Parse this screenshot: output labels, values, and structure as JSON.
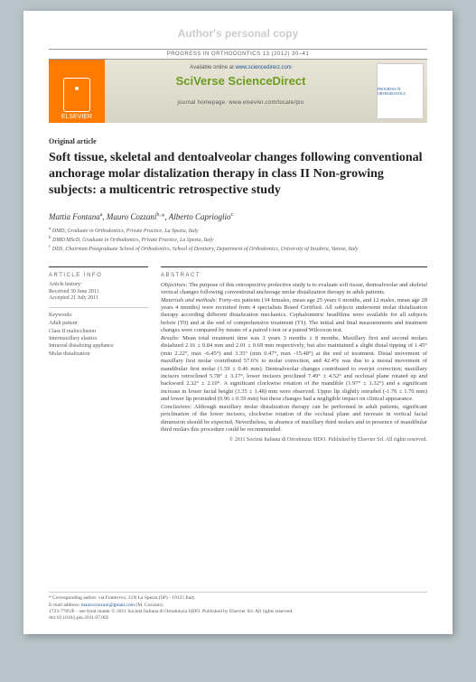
{
  "watermark": "Author's personal copy",
  "journal_line": "PROGRESS IN ORTHODONTICS 13 (2012) 30–41",
  "banner": {
    "publisher": "ELSEVIER",
    "available": "Available online at",
    "available_url": "www.sciencedirect.com",
    "sciverse": "SciVerse ScienceDirect",
    "homepage_label": "journal homepage:",
    "homepage_url": "www.elsevier.com/locate/pio",
    "cover_text": "PROGRESS IN ORTHODONTICS"
  },
  "article_type": "Original article",
  "title": "Soft tissue, skeletal and dentoalveolar changes following conventional anchorage molar distalization therapy in class II Non-growing subjects: a multicentric retrospective study",
  "authors_html": "Mattia Fontana",
  "author1": "Mattia Fontana",
  "author1_sup": "a",
  "author2": "Mauro Cozzani",
  "author2_sup": "b,",
  "author3": "Alberto Caprioglio",
  "author3_sup": "c",
  "affiliations": {
    "a": "DMD, Graduate in Orthodontics, Private Practice, La Spezia, Italy",
    "b": "DMD MScD, Graduate in Orthodontics, Private Practice, La Spezia, Italy",
    "c": "DDS, Chairman Postgraduate School of Orthodontics, School of Dentistry, Department of Orthodontics, University of Insubria, Varese, Italy"
  },
  "info_head": "ARTICLE INFO",
  "abs_head": "ABSTRACT",
  "history_label": "Article history:",
  "received": "Received 30 June 2011",
  "accepted": "Accepted 21 July 2011",
  "keywords_label": "Keywords:",
  "keywords": [
    "Adult patient",
    "Class II malocclusion",
    "Intermaxillary elastics",
    "Intraoral distalizing appliance",
    "Molar distalization"
  ],
  "abstract": {
    "objectives_label": "Objectives:",
    "objectives": "The purpose of this retrospective prolective study is to evaluate soft tissue, dentoalveolar and skeletal vertical changes following conventional anchorage molar distalization therapy in adult patients.",
    "methods_label": "Materials and methods:",
    "methods": "Forty-six patients (34 females, mean age 25 years 6 months, and 12 males, mean age 28 years 4 months) were recruited from 4 specialists Board Certified. All subjects underwent molar distalization therapy according different distalization mechanics. Cephalometric headfilms were available for all subjects before (T0) and at the end of comprehensive treatment (T1). The initial and final measurements and treatment changes were compared by means of a paired t-test or a paired Wilcoxon test.",
    "results_label": "Results:",
    "results": "Mean total treatment time was 3 years 3 months ± 8 months. Maxillary first and second molars distalized 2.16 ± 0.84 mm and 2.01 ± 0.69 mm respectively, but also maintained a slight distal tipping of 1.45° (min 2.22°, max -6.45°) and 3.35° (min 0.47°, max -15.48°) at the end of treatment. Distal movement of maxillary first molar contributed 57.6% to molar correction, and 42.4% was due to a mesial movement of mandibular first molar (1.59 ± 0.46 mm). Dentoalveolar changes contributed to overjet correction; maxillary incisors retroclined 5.78° ± 3.17°, lower incisors proclined 7.49° ± 4.52° and occlusal plane rotated up and backward 2.32° ± 2.10°. A significant clockwise rotation of the mandible (1.97° ± 1.32°) and a significant increase in lower facial height (3.35 ± 1.48) mm were observed. Upper lip slightly retruded (-1.76 ± 1.70 mm) and lower lip protruded (0.96 ± 0.59 mm) but these changes had a negligible impact on clinical appearance.",
    "conclusions_label": "Conclusions:",
    "conclusions": "Although maxillary molar distalization therapy can be performed in adult patients, significant proclination of the lower incisors, clockwise rotation of the occlusal plane and increase in vertical facial dimension should be expected. Nevertheless, in absence of maxillary third molars and in presence of mandibular third molars this procedure could be recommended."
  },
  "copyright": "© 2011 Società Italiana di Ortodonzia SIDO. Published by Elsevier Srl. All rights reserved.",
  "footer": {
    "corr_label": "* Corresponding author.",
    "corr_addr": "via Fontevivo, 21N La Spezia (SP) - 19125 Italy.",
    "email_label": "E-mail address:",
    "email": "maurocozzani@gmail.com",
    "email_name": "(M. Cozzani).",
    "issn": "1723-7785/$ – see front matter © 2011 Società Italiana di Ortodonzia SIDO. Published by Elsevier Srl. All rights reserved.",
    "doi": "doi:10.1016/j.pio.2011.07.002"
  }
}
